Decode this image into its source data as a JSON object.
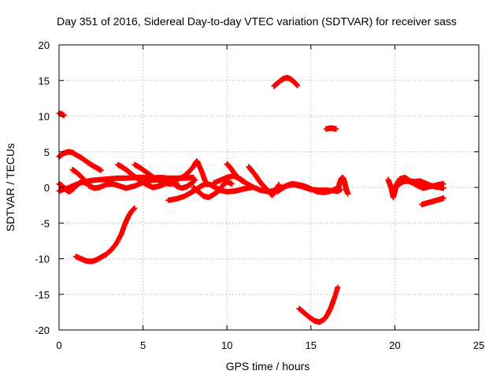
{
  "chart_data": {
    "type": "scatter",
    "title": "Day 351 of 2016, Sidereal Day-to-day VTEC variation (SDTVAR) for receiver sass",
    "xlabel": "GPS time / hours",
    "ylabel": "SDTVAR / TECUs",
    "xlim": [
      0,
      25
    ],
    "ylim": [
      -20,
      20
    ],
    "xticks": [
      "0",
      "5",
      "10",
      "15",
      "20",
      "25"
    ],
    "yticks": [
      "-20",
      "-15",
      "-10",
      "-5",
      "0",
      "5",
      "10",
      "15",
      "20"
    ],
    "grid": true,
    "grid_style": "dotted",
    "marker": "plus",
    "series_color": "#ff0000",
    "series": [
      {
        "values": [
          [
            0.0,
            10.4
          ],
          [
            0.15,
            10.3
          ],
          [
            0.3,
            10.1
          ]
        ]
      },
      {
        "values": [
          [
            0.0,
            4.3
          ],
          [
            0.2,
            4.7
          ],
          [
            0.4,
            4.9
          ],
          [
            0.6,
            5.0
          ],
          [
            0.8,
            4.9
          ],
          [
            1.0,
            4.6
          ],
          [
            1.3,
            4.2
          ],
          [
            1.6,
            3.7
          ],
          [
            1.9,
            3.2
          ],
          [
            2.2,
            2.8
          ],
          [
            2.5,
            2.4
          ]
        ]
      },
      {
        "values": [
          [
            0.0,
            0.5
          ],
          [
            0.2,
            0.2
          ],
          [
            0.4,
            -0.3
          ],
          [
            0.6,
            -0.6
          ],
          [
            0.8,
            -0.3
          ],
          [
            1.0,
            0.2
          ],
          [
            1.2,
            0.6
          ],
          [
            1.4,
            0.8
          ],
          [
            1.6,
            0.6
          ],
          [
            1.8,
            0.4
          ]
        ]
      },
      {
        "values": [
          [
            0.0,
            -0.5
          ],
          [
            0.5,
            -0.1
          ],
          [
            1.0,
            0.4
          ],
          [
            1.5,
            0.8
          ],
          [
            2.0,
            1.0
          ],
          [
            2.5,
            1.1
          ],
          [
            3.0,
            1.2
          ],
          [
            3.5,
            1.3
          ],
          [
            4.0,
            1.3
          ],
          [
            4.5,
            1.4
          ],
          [
            5.0,
            1.4
          ],
          [
            5.5,
            1.3
          ],
          [
            6.0,
            1.4
          ],
          [
            6.5,
            1.3
          ],
          [
            7.0,
            1.3
          ],
          [
            7.5,
            1.3
          ],
          [
            8.0,
            1.4
          ]
        ]
      },
      {
        "values": [
          [
            0.8,
            2.5
          ],
          [
            1.1,
            2.0
          ],
          [
            1.4,
            1.3
          ],
          [
            1.6,
            0.8
          ],
          [
            1.8,
            0.2
          ],
          [
            2.1,
            -0.1
          ],
          [
            2.4,
            0.0
          ],
          [
            2.8,
            0.4
          ],
          [
            3.2,
            0.5
          ],
          [
            3.6,
            0.2
          ],
          [
            4.0,
            -0.1
          ],
          [
            4.5,
            0.2
          ],
          [
            5.0,
            0.7
          ],
          [
            5.5,
            1.0
          ],
          [
            6.0,
            1.1
          ]
        ]
      },
      {
        "values": [
          [
            1.0,
            -9.7
          ],
          [
            1.3,
            -10.0
          ],
          [
            1.6,
            -10.3
          ],
          [
            1.9,
            -10.4
          ],
          [
            2.2,
            -10.2
          ],
          [
            2.5,
            -9.8
          ],
          [
            2.8,
            -9.4
          ],
          [
            3.1,
            -8.8
          ],
          [
            3.4,
            -7.9
          ],
          [
            3.7,
            -6.6
          ],
          [
            3.9,
            -5.3
          ],
          [
            4.1,
            -4.2
          ],
          [
            4.3,
            -3.4
          ],
          [
            4.5,
            -2.9
          ]
        ]
      },
      {
        "values": [
          [
            3.5,
            3.2
          ],
          [
            3.8,
            2.8
          ],
          [
            4.1,
            2.3
          ],
          [
            4.4,
            1.7
          ],
          [
            4.7,
            1.2
          ],
          [
            5.0,
            0.7
          ],
          [
            5.3,
            0.3
          ],
          [
            5.6,
            0.0
          ],
          [
            6.0,
            0.2
          ],
          [
            6.4,
            0.6
          ],
          [
            6.8,
            0.8
          ]
        ]
      },
      {
        "values": [
          [
            4.5,
            3.2
          ],
          [
            4.8,
            2.8
          ],
          [
            5.1,
            2.3
          ],
          [
            5.4,
            1.8
          ],
          [
            5.7,
            1.3
          ],
          [
            6.0,
            0.9
          ],
          [
            6.3,
            0.6
          ],
          [
            6.6,
            0.5
          ],
          [
            7.0,
            0.6
          ]
        ]
      },
      {
        "values": [
          [
            6.5,
            -1.8
          ],
          [
            7.0,
            -1.6
          ],
          [
            7.5,
            -1.2
          ],
          [
            7.8,
            -0.8
          ],
          [
            8.1,
            -0.4
          ],
          [
            8.4,
            0.1
          ],
          [
            8.7,
            0.5
          ],
          [
            9.0,
            0.4
          ],
          [
            9.3,
            0.0
          ],
          [
            9.6,
            -0.4
          ],
          [
            10.0,
            -0.6
          ],
          [
            10.5,
            -0.5
          ],
          [
            11.0,
            -0.2
          ],
          [
            11.5,
            0.0
          ]
        ]
      },
      {
        "values": [
          [
            6.5,
            0.9
          ],
          [
            6.8,
            0.6
          ],
          [
            7.0,
            0.2
          ],
          [
            7.3,
            -0.1
          ],
          [
            7.6,
            0.1
          ],
          [
            7.9,
            0.6
          ],
          [
            8.1,
            1.1
          ]
        ]
      },
      {
        "values": [
          [
            7.0,
            1.1
          ],
          [
            7.4,
            1.5
          ],
          [
            7.7,
            2.1
          ],
          [
            8.0,
            2.9
          ],
          [
            8.2,
            3.7
          ],
          [
            8.3,
            3.3
          ],
          [
            8.5,
            2.2
          ],
          [
            8.7,
            0.9
          ]
        ]
      },
      {
        "values": [
          [
            8.0,
            0.0
          ],
          [
            8.3,
            -0.6
          ],
          [
            8.6,
            -1.2
          ],
          [
            8.9,
            -1.4
          ],
          [
            9.2,
            -1.0
          ],
          [
            9.5,
            -0.5
          ],
          [
            9.8,
            0.4
          ],
          [
            10.0,
            0.8
          ],
          [
            10.3,
            0.5
          ]
        ]
      },
      {
        "values": [
          [
            9.2,
            0.6
          ],
          [
            9.6,
            1.0
          ],
          [
            10.0,
            1.4
          ],
          [
            10.4,
            1.6
          ],
          [
            10.8,
            1.2
          ],
          [
            11.2,
            0.5
          ],
          [
            11.6,
            0.0
          ],
          [
            12.0,
            -0.4
          ],
          [
            12.5,
            -0.6
          ],
          [
            13.0,
            -0.3
          ],
          [
            13.5,
            0.2
          ],
          [
            14.0,
            0.4
          ],
          [
            14.5,
            0.1
          ],
          [
            15.0,
            -0.3
          ],
          [
            15.5,
            -0.4
          ],
          [
            16.0,
            -0.4
          ],
          [
            16.5,
            -0.5
          ],
          [
            16.8,
            -0.3
          ]
        ]
      },
      {
        "values": [
          [
            10.0,
            3.3
          ],
          [
            10.2,
            2.8
          ],
          [
            10.4,
            2.1
          ],
          [
            10.6,
            1.5
          ],
          [
            10.8,
            1.1
          ],
          [
            11.0,
            0.8
          ]
        ]
      },
      {
        "values": [
          [
            11.3,
            2.9
          ],
          [
            11.5,
            2.3
          ],
          [
            11.7,
            1.7
          ],
          [
            11.9,
            1.0
          ],
          [
            12.1,
            0.4
          ],
          [
            12.3,
            -0.1
          ],
          [
            12.5,
            -0.6
          ],
          [
            12.7,
            -1.1
          ],
          [
            12.9,
            -0.4
          ],
          [
            13.1,
            0.4
          ]
        ]
      },
      {
        "values": [
          [
            13.0,
            -0.6
          ],
          [
            13.3,
            -0.1
          ],
          [
            13.6,
            0.3
          ],
          [
            13.9,
            0.5
          ],
          [
            14.2,
            0.4
          ],
          [
            14.6,
            0.2
          ],
          [
            15.0,
            -0.2
          ],
          [
            15.4,
            -0.6
          ],
          [
            15.8,
            -0.7
          ],
          [
            16.2,
            -0.5
          ],
          [
            16.5,
            -0.2
          ]
        ]
      },
      {
        "values": [
          [
            12.8,
            14.2
          ],
          [
            13.0,
            14.6
          ],
          [
            13.2,
            15.0
          ],
          [
            13.4,
            15.3
          ],
          [
            13.6,
            15.4
          ],
          [
            13.8,
            15.2
          ],
          [
            14.0,
            14.8
          ],
          [
            14.2,
            14.3
          ]
        ]
      },
      {
        "values": [
          [
            15.9,
            8.2
          ],
          [
            16.1,
            8.3
          ],
          [
            16.3,
            8.3
          ],
          [
            16.5,
            8.2
          ]
        ]
      },
      {
        "values": [
          [
            14.3,
            -17.0
          ],
          [
            14.6,
            -17.6
          ],
          [
            14.9,
            -18.2
          ],
          [
            15.2,
            -18.7
          ],
          [
            15.5,
            -18.9
          ],
          [
            15.8,
            -18.5
          ],
          [
            16.0,
            -17.8
          ],
          [
            16.2,
            -16.8
          ],
          [
            16.4,
            -15.5
          ],
          [
            16.6,
            -14.0
          ]
        ]
      },
      {
        "values": [
          [
            16.6,
            -0.6
          ],
          [
            16.7,
            0.5
          ],
          [
            16.8,
            1.2
          ],
          [
            16.9,
            1.4
          ],
          [
            17.0,
            0.8
          ],
          [
            17.1,
            -0.2
          ],
          [
            17.2,
            -0.9
          ]
        ]
      },
      {
        "values": [
          [
            19.6,
            1.1
          ],
          [
            19.7,
            0.5
          ],
          [
            19.8,
            -0.2
          ],
          [
            19.9,
            -1.4
          ],
          [
            20.0,
            -0.6
          ],
          [
            20.1,
            0.4
          ],
          [
            20.3,
            1.2
          ],
          [
            20.6,
            1.4
          ],
          [
            20.9,
            0.9
          ],
          [
            21.2,
            0.8
          ],
          [
            21.5,
            0.9
          ],
          [
            21.8,
            0.6
          ],
          [
            22.1,
            0.3
          ],
          [
            22.4,
            0.1
          ],
          [
            22.7,
            0.0
          ],
          [
            22.9,
            -0.1
          ]
        ]
      },
      {
        "values": [
          [
            20.0,
            -0.2
          ],
          [
            20.2,
            0.4
          ],
          [
            20.5,
            0.8
          ],
          [
            20.8,
            0.9
          ],
          [
            21.1,
            0.6
          ],
          [
            21.4,
            0.2
          ],
          [
            21.7,
            -0.1
          ],
          [
            22.0,
            0.1
          ],
          [
            22.3,
            0.2
          ],
          [
            22.6,
            0.4
          ],
          [
            22.9,
            0.5
          ]
        ]
      },
      {
        "values": [
          [
            21.6,
            -2.4
          ],
          [
            21.9,
            -2.2
          ],
          [
            22.2,
            -2.0
          ],
          [
            22.5,
            -1.8
          ],
          [
            22.8,
            -1.6
          ],
          [
            22.9,
            -1.5
          ]
        ]
      }
    ]
  }
}
